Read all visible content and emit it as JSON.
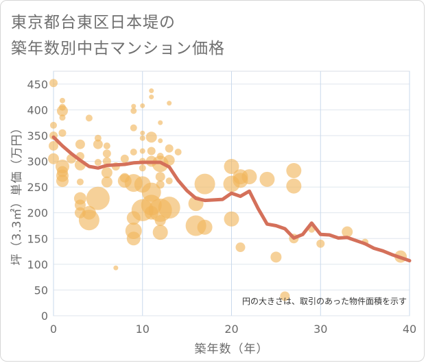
{
  "title_lines": [
    "東京都台東区日本堤の",
    "築年数別中古マンション価格"
  ],
  "chart_data": {
    "type": "scatter",
    "title": "東京都台東区日本堤の築年数別中古マンション価格",
    "xlabel": "築年数（年）",
    "ylabel": "坪（3.3㎡）単価（万円）",
    "xlim": [
      0,
      40
    ],
    "ylim": [
      0,
      475
    ],
    "x_ticks": [
      0,
      10,
      20,
      30,
      40
    ],
    "y_ticks": [
      0,
      50,
      100,
      150,
      200,
      250,
      300,
      350,
      400,
      450
    ],
    "grid": true,
    "annotation": "円の大きさは、取引のあった物件面積を示す",
    "colors": {
      "bubble": "#f0b45a",
      "trend": "#d4705a",
      "grid": "#c9d9ec"
    },
    "series": [
      {
        "type": "bubble",
        "points": [
          {
            "x": 0,
            "y": 452,
            "s": 1.2
          },
          {
            "x": 0,
            "y": 370,
            "s": 1.0
          },
          {
            "x": 0,
            "y": 350,
            "s": 1.2
          },
          {
            "x": 0,
            "y": 330,
            "s": 1.4
          },
          {
            "x": 0,
            "y": 305,
            "s": 1.6
          },
          {
            "x": 1,
            "y": 418,
            "s": 0.8
          },
          {
            "x": 1,
            "y": 405,
            "s": 1.0
          },
          {
            "x": 1,
            "y": 398,
            "s": 1.6
          },
          {
            "x": 1,
            "y": 385,
            "s": 0.9
          },
          {
            "x": 1,
            "y": 355,
            "s": 1.1
          },
          {
            "x": 1,
            "y": 290,
            "s": 2.0
          },
          {
            "x": 1,
            "y": 280,
            "s": 1.6
          },
          {
            "x": 1,
            "y": 272,
            "s": 1.8
          },
          {
            "x": 1,
            "y": 262,
            "s": 1.8
          },
          {
            "x": 2,
            "y": 305,
            "s": 1.4
          },
          {
            "x": 3,
            "y": 333,
            "s": 1.4
          },
          {
            "x": 3,
            "y": 310,
            "s": 1.2
          },
          {
            "x": 3,
            "y": 293,
            "s": 1.6
          },
          {
            "x": 3,
            "y": 260,
            "s": 1.0
          },
          {
            "x": 3,
            "y": 228,
            "s": 1.8
          },
          {
            "x": 3,
            "y": 215,
            "s": 1.6
          },
          {
            "x": 3,
            "y": 200,
            "s": 1.6
          },
          {
            "x": 4,
            "y": 384,
            "s": 1.0
          },
          {
            "x": 4,
            "y": 200,
            "s": 2.0
          },
          {
            "x": 4,
            "y": 186,
            "s": 3.0
          },
          {
            "x": 5,
            "y": 345,
            "s": 1.0
          },
          {
            "x": 5,
            "y": 333,
            "s": 1.4
          },
          {
            "x": 5,
            "y": 298,
            "s": 1.0
          },
          {
            "x": 5,
            "y": 228,
            "s": 3.4
          },
          {
            "x": 6,
            "y": 330,
            "s": 1.0
          },
          {
            "x": 6,
            "y": 315,
            "s": 1.2
          },
          {
            "x": 6,
            "y": 300,
            "s": 1.2
          },
          {
            "x": 6,
            "y": 278,
            "s": 1.6
          },
          {
            "x": 6,
            "y": 260,
            "s": 1.6
          },
          {
            "x": 7,
            "y": 93,
            "s": 0.7
          },
          {
            "x": 7,
            "y": 290,
            "s": 1.2
          },
          {
            "x": 8,
            "y": 305,
            "s": 1.2
          },
          {
            "x": 8,
            "y": 268,
            "s": 1.4
          },
          {
            "x": 8,
            "y": 262,
            "s": 2.0
          },
          {
            "x": 9,
            "y": 407,
            "s": 0.7
          },
          {
            "x": 9,
            "y": 398,
            "s": 0.9
          },
          {
            "x": 9,
            "y": 365,
            "s": 1.0
          },
          {
            "x": 9,
            "y": 318,
            "s": 1.0
          },
          {
            "x": 9,
            "y": 258,
            "s": 2.6
          },
          {
            "x": 9,
            "y": 190,
            "s": 2.0
          },
          {
            "x": 9,
            "y": 165,
            "s": 2.4
          },
          {
            "x": 9,
            "y": 150,
            "s": 2.0
          },
          {
            "x": 10,
            "y": 408,
            "s": 0.7
          },
          {
            "x": 10,
            "y": 355,
            "s": 0.7
          },
          {
            "x": 10,
            "y": 345,
            "s": 0.8
          },
          {
            "x": 10,
            "y": 320,
            "s": 0.8
          },
          {
            "x": 10,
            "y": 300,
            "s": 1.0
          },
          {
            "x": 10,
            "y": 287,
            "s": 1.0
          },
          {
            "x": 10,
            "y": 255,
            "s": 2.4
          },
          {
            "x": 10,
            "y": 205,
            "s": 3.2
          },
          {
            "x": 11,
            "y": 437,
            "s": 0.7
          },
          {
            "x": 11,
            "y": 425,
            "s": 0.7
          },
          {
            "x": 11,
            "y": 347,
            "s": 1.6
          },
          {
            "x": 11,
            "y": 320,
            "s": 1.2
          },
          {
            "x": 11,
            "y": 300,
            "s": 1.6
          },
          {
            "x": 11,
            "y": 240,
            "s": 2.8
          },
          {
            "x": 11,
            "y": 215,
            "s": 3.0
          },
          {
            "x": 11,
            "y": 200,
            "s": 2.0
          },
          {
            "x": 12,
            "y": 375,
            "s": 0.7
          },
          {
            "x": 12,
            "y": 340,
            "s": 0.7
          },
          {
            "x": 12,
            "y": 310,
            "s": 1.0
          },
          {
            "x": 12,
            "y": 295,
            "s": 2.4
          },
          {
            "x": 12,
            "y": 270,
            "s": 1.4
          },
          {
            "x": 12,
            "y": 255,
            "s": 1.2
          },
          {
            "x": 12,
            "y": 205,
            "s": 3.4
          },
          {
            "x": 12,
            "y": 185,
            "s": 1.6
          },
          {
            "x": 12,
            "y": 162,
            "s": 2.2
          },
          {
            "x": 13,
            "y": 413,
            "s": 0.7
          },
          {
            "x": 13,
            "y": 325,
            "s": 1.2
          },
          {
            "x": 13,
            "y": 302,
            "s": 1.6
          },
          {
            "x": 13,
            "y": 262,
            "s": 1.0
          },
          {
            "x": 13,
            "y": 210,
            "s": 3.2
          },
          {
            "x": 14,
            "y": 318,
            "s": 1.0
          },
          {
            "x": 16,
            "y": 218,
            "s": 2.2
          },
          {
            "x": 16,
            "y": 175,
            "s": 3.0
          },
          {
            "x": 17,
            "y": 256,
            "s": 3.0
          },
          {
            "x": 17,
            "y": 172,
            "s": 2.2
          },
          {
            "x": 20,
            "y": 290,
            "s": 2.2
          },
          {
            "x": 20,
            "y": 256,
            "s": 2.4
          },
          {
            "x": 20,
            "y": 188,
            "s": 2.2
          },
          {
            "x": 21,
            "y": 270,
            "s": 2.2
          },
          {
            "x": 21,
            "y": 263,
            "s": 2.2
          },
          {
            "x": 21,
            "y": 133,
            "s": 1.4
          },
          {
            "x": 22,
            "y": 270,
            "s": 2.2
          },
          {
            "x": 24,
            "y": 265,
            "s": 2.2
          },
          {
            "x": 25,
            "y": 114,
            "s": 1.6
          },
          {
            "x": 26,
            "y": 38,
            "s": 1.4
          },
          {
            "x": 27,
            "y": 282,
            "s": 2.2
          },
          {
            "x": 27,
            "y": 252,
            "s": 2.2
          },
          {
            "x": 27,
            "y": 150,
            "s": 1.4
          },
          {
            "x": 29,
            "y": 168,
            "s": 1.0
          },
          {
            "x": 30,
            "y": 140,
            "s": 1.2
          },
          {
            "x": 33,
            "y": 163,
            "s": 1.6
          },
          {
            "x": 35,
            "y": 143,
            "s": 1.0
          },
          {
            "x": 39,
            "y": 115,
            "s": 1.8
          }
        ]
      },
      {
        "type": "line",
        "x": [
          0,
          1,
          2,
          3,
          4,
          5,
          6,
          7,
          8,
          9,
          10,
          11,
          12,
          13,
          14,
          15,
          16,
          17,
          18,
          19,
          20,
          21,
          22,
          23,
          24,
          25,
          26,
          27,
          28,
          29,
          30,
          31,
          32,
          33,
          34,
          35,
          36,
          37,
          38,
          39,
          40
        ],
        "y": [
          347,
          330,
          315,
          302,
          290,
          287,
          292,
          293,
          294,
          297,
          298,
          298,
          298,
          289,
          263,
          243,
          228,
          224,
          225,
          226,
          238,
          232,
          242,
          208,
          178,
          175,
          169,
          151,
          158,
          180,
          158,
          157,
          151,
          152,
          146,
          140,
          131,
          126,
          119,
          113,
          107
        ]
      }
    ]
  }
}
